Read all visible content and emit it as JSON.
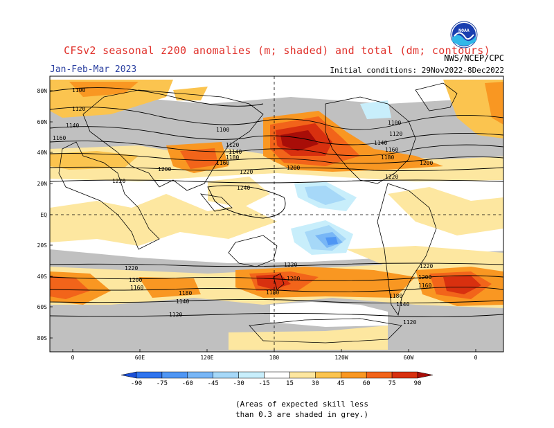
{
  "title": "CFSv2 seasonal z200 anomalies (m; shaded) and total (dm; contours)",
  "season": "Jan-Feb-Mar 2023",
  "agency": "NWS/NCEP/CPC",
  "logo_text": "NOAA",
  "initial_conditions": "Initial conditions: 29Nov2022-8Dec2022",
  "lat_labels": [
    "80N",
    "60N",
    "40N",
    "20N",
    "EQ",
    "20S",
    "40S",
    "60S",
    "80S"
  ],
  "lon_labels": [
    "0",
    "60E",
    "120E",
    "180",
    "120W",
    "60W",
    "0"
  ],
  "contour_labels": [
    "1100",
    "1120",
    "1140",
    "1160",
    "1180",
    "1200",
    "1220",
    "1240"
  ],
  "colorbar": {
    "ticks": [
      "-90",
      "-75",
      "-60",
      "-45",
      "-30",
      "-15",
      "15",
      "30",
      "45",
      "60",
      "75",
      "90"
    ],
    "colors": [
      "#1a4fd8",
      "#2f74ee",
      "#4f96f4",
      "#78b6f6",
      "#a6d8f8",
      "#c8eefb",
      "#ffffff",
      "#fde7a0",
      "#fbc44f",
      "#f99722",
      "#f2641a",
      "#d8300f",
      "#a80d08"
    ]
  },
  "skill_note_line1": "(Areas of expected skill less",
  "skill_note_line2": "than 0.3 are shaded in grey.)",
  "colors": {
    "skill_grey": "#c0c0c0",
    "title_red": "#e0302a",
    "season_blue": "#2a3fa0"
  }
}
